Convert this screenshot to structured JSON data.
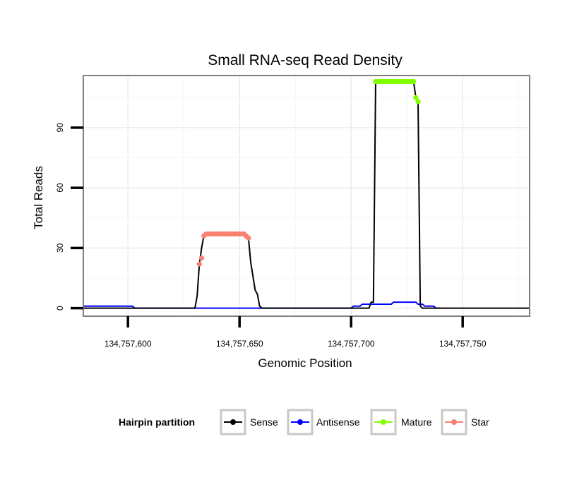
{
  "chart_data": {
    "type": "line",
    "title": "Small RNA-seq Read Density",
    "xlabel": "Genomic Position",
    "ylabel": "Total Reads",
    "xlim": [
      134757580,
      134757780
    ],
    "ylim": [
      -4,
      116
    ],
    "xticks": [
      134757600,
      134757650,
      134757700,
      134757750
    ],
    "xtick_labels": [
      "134,757,600",
      "134,757,650",
      "134,757,700",
      "134,757,750"
    ],
    "yticks": [
      0,
      30,
      60,
      90
    ],
    "ytick_labels": [
      "0",
      "30",
      "60",
      "90"
    ],
    "grid": true,
    "legend": {
      "title": "Hairpin partition",
      "placement": "bottom",
      "entries": [
        {
          "name": "Sense",
          "color": "#000000"
        },
        {
          "name": "Antisense",
          "color": "#0000ff"
        },
        {
          "name": "Mature",
          "color": "#7fff00"
        },
        {
          "name": "Star",
          "color": "#fa8072"
        }
      ]
    },
    "series": [
      {
        "name": "Sense",
        "color": "#000000",
        "points": [
          [
            134757580,
            0
          ],
          [
            134757630,
            0
          ],
          [
            134757631,
            6
          ],
          [
            134757632,
            22
          ],
          [
            134757633,
            30
          ],
          [
            134757634,
            36
          ],
          [
            134757636,
            37
          ],
          [
            134757653,
            37
          ],
          [
            134757654,
            35
          ],
          [
            134757655,
            23
          ],
          [
            134757656,
            16
          ],
          [
            134757657,
            9
          ],
          [
            134757658,
            7
          ],
          [
            134757659,
            1
          ],
          [
            134757660,
            0
          ],
          [
            134757708,
            0
          ],
          [
            134757709,
            3
          ],
          [
            134757710,
            3
          ],
          [
            134757711,
            113
          ],
          [
            134757728,
            113
          ],
          [
            134757729,
            105
          ],
          [
            134757730,
            103
          ],
          [
            134757731,
            1
          ],
          [
            134757732,
            0
          ],
          [
            134757780,
            0
          ]
        ]
      },
      {
        "name": "Antisense",
        "color": "#0000ff",
        "points": [
          [
            134757580,
            1
          ],
          [
            134757602,
            1
          ],
          [
            134757603,
            0
          ],
          [
            134757700,
            0
          ],
          [
            134757701,
            1
          ],
          [
            134757704,
            1
          ],
          [
            134757705,
            2
          ],
          [
            134757718,
            2
          ],
          [
            134757719,
            3
          ],
          [
            134757729,
            3
          ],
          [
            134757730,
            2
          ],
          [
            134757732,
            2
          ],
          [
            134757733,
            1
          ],
          [
            134757737,
            1
          ],
          [
            134757738,
            0
          ],
          [
            134757740,
            0
          ]
        ]
      },
      {
        "name": "Mature",
        "color": "#7fff00",
        "points": [
          [
            134757711,
            113
          ],
          [
            134757712,
            113
          ],
          [
            134757713,
            113
          ],
          [
            134757714,
            113
          ],
          [
            134757715,
            113
          ],
          [
            134757716,
            113
          ],
          [
            134757717,
            113
          ],
          [
            134757718,
            113
          ],
          [
            134757719,
            113
          ],
          [
            134757720,
            113
          ],
          [
            134757721,
            113
          ],
          [
            134757722,
            113
          ],
          [
            134757723,
            113
          ],
          [
            134757724,
            113
          ],
          [
            134757725,
            113
          ],
          [
            134757726,
            113
          ],
          [
            134757727,
            113
          ],
          [
            134757728,
            113
          ],
          [
            134757729,
            105
          ],
          [
            134757730,
            103
          ]
        ]
      },
      {
        "name": "Star",
        "color": "#fa8072",
        "points": [
          [
            134757632,
            22
          ],
          [
            134757633,
            25
          ],
          [
            134757634,
            36
          ],
          [
            134757635,
            37
          ],
          [
            134757636,
            37
          ],
          [
            134757637,
            37
          ],
          [
            134757638,
            37
          ],
          [
            134757639,
            37
          ],
          [
            134757640,
            37
          ],
          [
            134757641,
            37
          ],
          [
            134757642,
            37
          ],
          [
            134757643,
            37
          ],
          [
            134757644,
            37
          ],
          [
            134757645,
            37
          ],
          [
            134757646,
            37
          ],
          [
            134757647,
            37
          ],
          [
            134757648,
            37
          ],
          [
            134757649,
            37
          ],
          [
            134757650,
            37
          ],
          [
            134757651,
            37
          ],
          [
            134757652,
            37
          ],
          [
            134757653,
            36
          ],
          [
            134757654,
            35
          ]
        ]
      }
    ]
  }
}
